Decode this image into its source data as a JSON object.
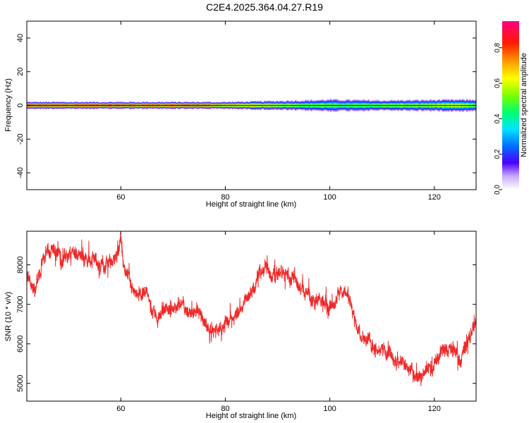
{
  "title": "C2E4.2025.364.04.27.R19",
  "chart_data": [
    {
      "type": "heatmap",
      "name": "spectrogram",
      "xlabel": "Height of straight line (km)",
      "ylabel": "Frequency (Hz)",
      "xlim": [
        42,
        128
      ],
      "ylim": [
        -50,
        50
      ],
      "xticks": [
        60,
        80,
        100,
        120
      ],
      "yticks": [
        40,
        20,
        0,
        -20,
        -40
      ],
      "band_center_hz": 0,
      "band_halfwidth_hz": [
        [
          42,
          2
        ],
        [
          60,
          2
        ],
        [
          80,
          2
        ],
        [
          95,
          3
        ],
        [
          100,
          3.5
        ],
        [
          110,
          3
        ],
        [
          128,
          3.5
        ]
      ],
      "peak_amplitude": [
        [
          42,
          0.95
        ],
        [
          60,
          0.95
        ],
        [
          76,
          0.9
        ],
        [
          82,
          0.75
        ],
        [
          90,
          0.65
        ],
        [
          96,
          0.5
        ],
        [
          104,
          0.5
        ],
        [
          116,
          0.55
        ],
        [
          124,
          0.6
        ],
        [
          128,
          0.5
        ]
      ],
      "colorbar": {
        "label": "Normalized spectral amplitude",
        "range": [
          0,
          0.95
        ],
        "ticks": [
          "0.0",
          "0.2",
          "0.4",
          "0.6",
          "0.8"
        ],
        "tick_values": [
          0.0,
          0.2,
          0.4,
          0.6,
          0.8
        ]
      }
    },
    {
      "type": "line",
      "name": "snr",
      "xlabel": "Height of straight line (km)",
      "ylabel": "SNR (10 * v/v)",
      "xlim": [
        42,
        128
      ],
      "ylim": [
        4550,
        8850
      ],
      "xticks": [
        60,
        80,
        100,
        120
      ],
      "yticks": [
        8000,
        7000,
        6000,
        5000
      ],
      "color": "#ee2a2a",
      "trend": [
        [
          42,
          7800
        ],
        [
          43.5,
          7400
        ],
        [
          45,
          8100
        ],
        [
          47,
          8450
        ],
        [
          49,
          8150
        ],
        [
          51,
          8300
        ],
        [
          53,
          8250
        ],
        [
          55,
          8150
        ],
        [
          57,
          8000
        ],
        [
          59,
          8150
        ],
        [
          60,
          8550
        ],
        [
          61,
          7700
        ],
        [
          63,
          7300
        ],
        [
          65,
          7150
        ],
        [
          67,
          6600
        ],
        [
          69,
          6900
        ],
        [
          71,
          7000
        ],
        [
          73,
          6800
        ],
        [
          75,
          6700
        ],
        [
          77,
          6400
        ],
        [
          79,
          6300
        ],
        [
          81,
          6700
        ],
        [
          83,
          6900
        ],
        [
          85,
          7300
        ],
        [
          87,
          7900
        ],
        [
          89,
          7750
        ],
        [
          91,
          7800
        ],
        [
          93,
          7650
        ],
        [
          95,
          7400
        ],
        [
          97,
          7050
        ],
        [
          99,
          7000
        ],
        [
          101,
          7200
        ],
        [
          103,
          7400
        ],
        [
          105,
          6450
        ],
        [
          107,
          6150
        ],
        [
          109,
          5950
        ],
        [
          111,
          5800
        ],
        [
          113,
          5600
        ],
        [
          115,
          5300
        ],
        [
          117,
          5100
        ],
        [
          119,
          5400
        ],
        [
          121,
          5700
        ],
        [
          123,
          5850
        ],
        [
          125,
          5650
        ],
        [
          127,
          6300
        ],
        [
          128,
          6550
        ]
      ]
    }
  ]
}
